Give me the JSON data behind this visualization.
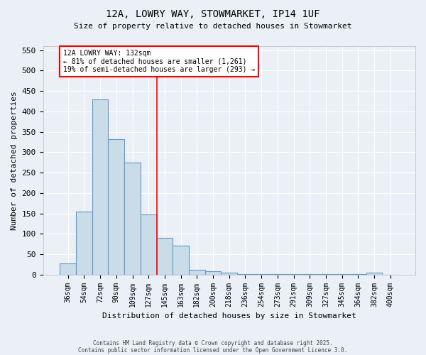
{
  "title1": "12A, LOWRY WAY, STOWMARKET, IP14 1UF",
  "title2": "Size of property relative to detached houses in Stowmarket",
  "xlabel": "Distribution of detached houses by size in Stowmarket",
  "ylabel": "Number of detached properties",
  "bin_labels": [
    "36sqm",
    "54sqm",
    "72sqm",
    "90sqm",
    "109sqm",
    "127sqm",
    "145sqm",
    "163sqm",
    "182sqm",
    "200sqm",
    "218sqm",
    "236sqm",
    "254sqm",
    "273sqm",
    "291sqm",
    "309sqm",
    "327sqm",
    "345sqm",
    "364sqm",
    "382sqm",
    "400sqm"
  ],
  "bar_values": [
    27,
    155,
    430,
    332,
    275,
    147,
    90,
    71,
    12,
    8,
    4,
    1,
    1,
    1,
    1,
    1,
    1,
    1,
    1,
    5,
    0
  ],
  "bar_color": "#c9dce8",
  "bar_edge_color": "#5b9bd5",
  "background_color": "#eaf0f6",
  "grid_color": "#ffffff",
  "red_line_x": 5.5,
  "annotation_text_line1": "12A LOWRY WAY: 132sqm",
  "annotation_text_line2": "← 81% of detached houses are smaller (1,261)",
  "annotation_text_line3": "19% of semi-detached houses are larger (293) →",
  "footer_line1": "Contains HM Land Registry data © Crown copyright and database right 2025.",
  "footer_line2": "Contains public sector information licensed under the Open Government Licence 3.0.",
  "ylim": [
    0,
    560
  ],
  "yticks": [
    0,
    50,
    100,
    150,
    200,
    250,
    300,
    350,
    400,
    450,
    500,
    550
  ]
}
